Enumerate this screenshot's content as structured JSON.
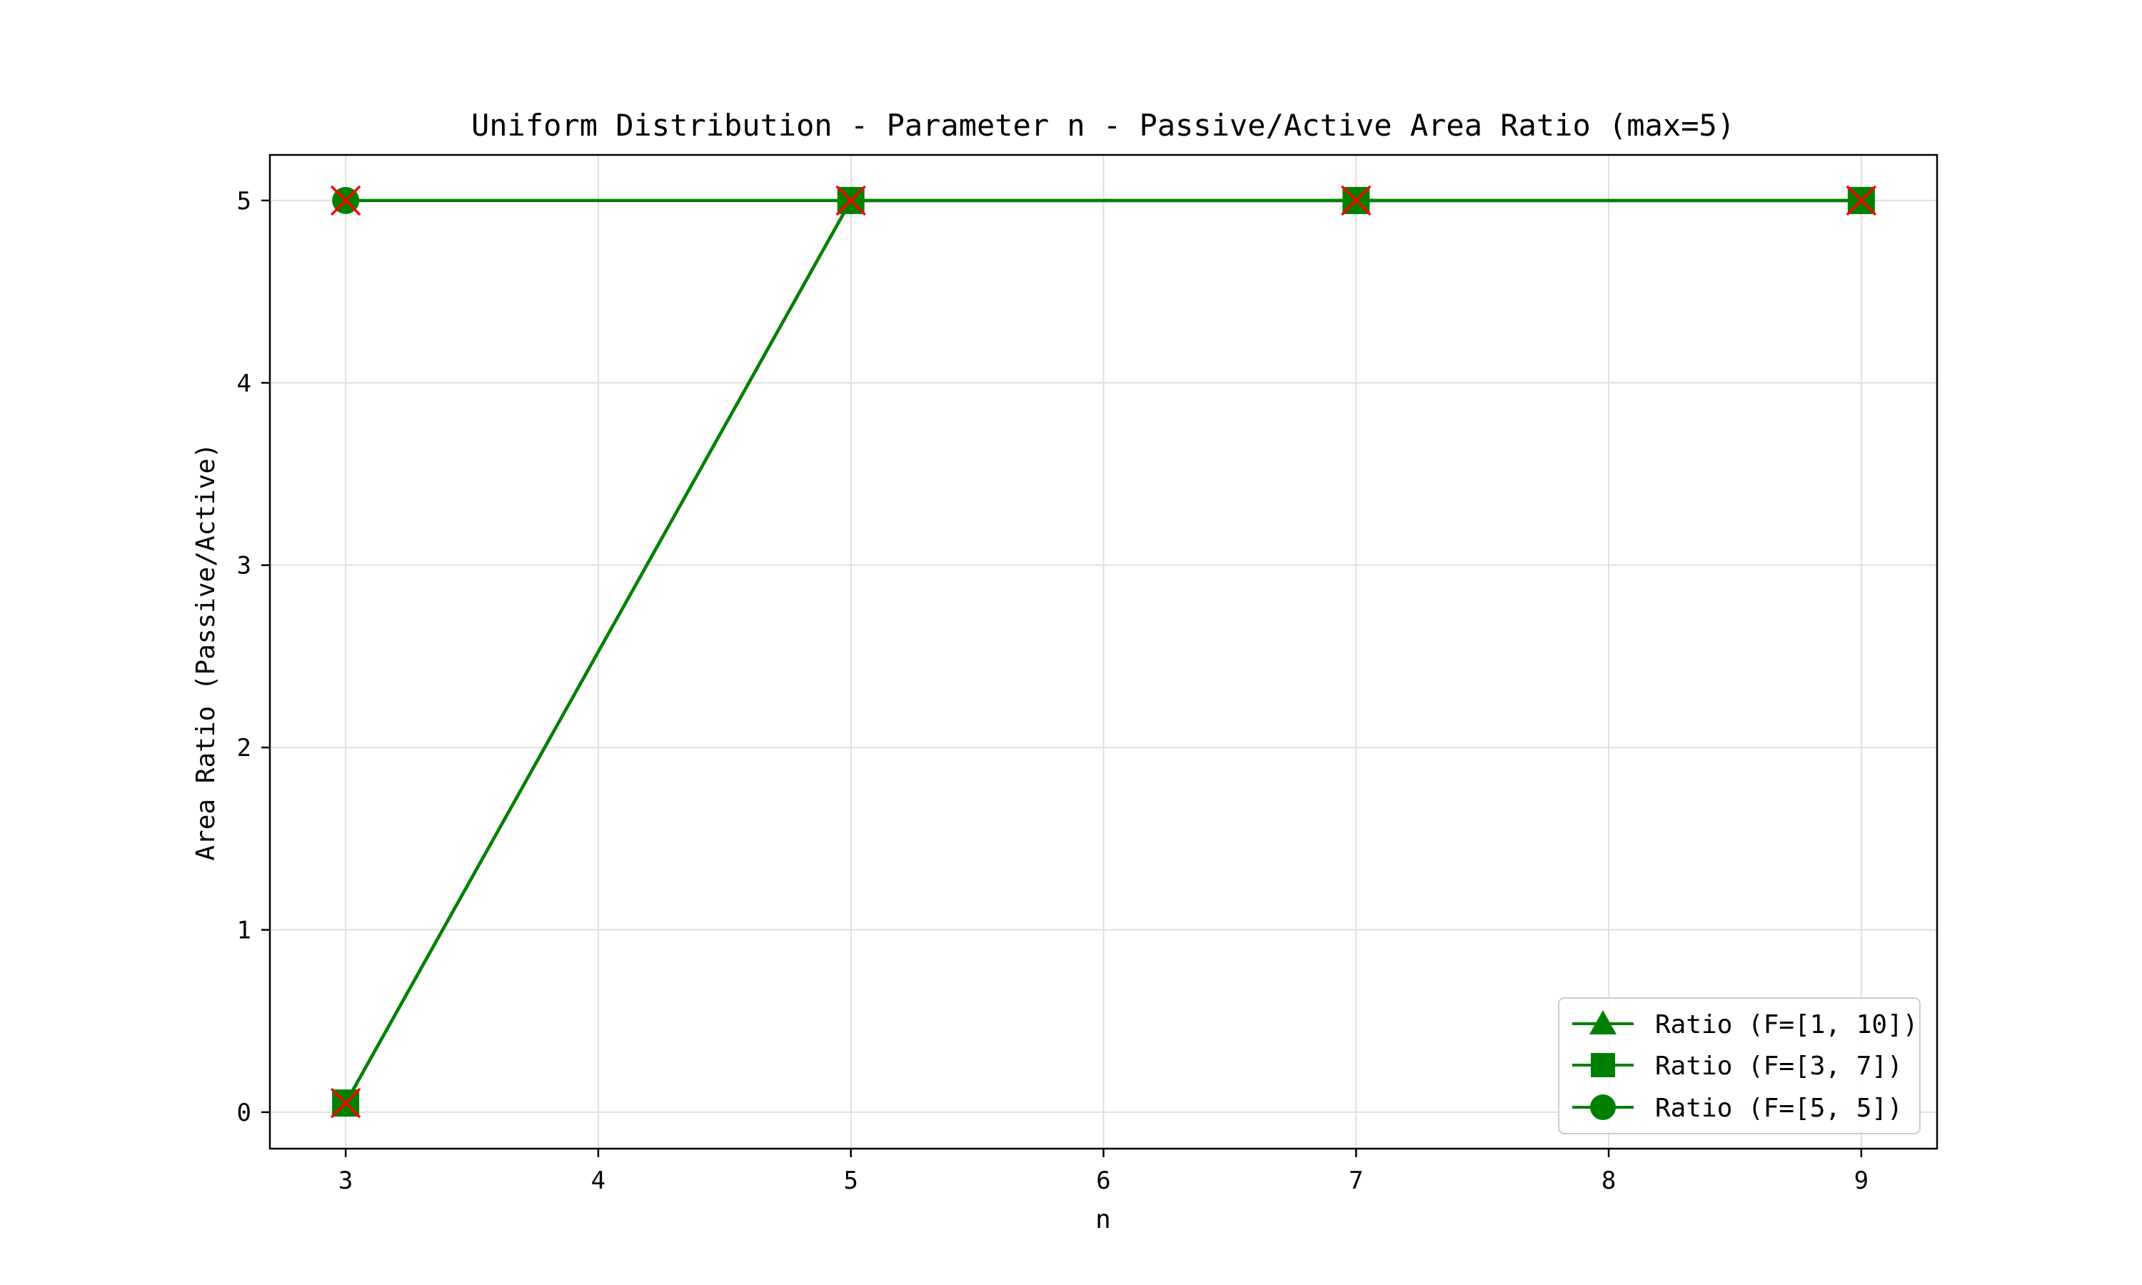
{
  "chart_data": {
    "type": "line",
    "title": "Uniform Distribution - Parameter n - Passive/Active Area Ratio (max=5)",
    "xlabel": "n",
    "ylabel": "Area Ratio (Passive/Active)",
    "x": [
      3,
      5,
      7,
      9
    ],
    "xlim": [
      2.7,
      9.3
    ],
    "ylim": [
      -0.2,
      5.25
    ],
    "xticks": [
      3,
      4,
      5,
      6,
      7,
      8,
      9
    ],
    "yticks": [
      0,
      1,
      2,
      3,
      4,
      5
    ],
    "grid": true,
    "legend_position": "lower-right",
    "line_color": "#008000",
    "cap_marker_color": "#ff0000",
    "series": [
      {
        "name": "Ratio (F=[1, 10])",
        "marker": "triangle",
        "values": [
          0.05,
          5,
          5,
          5
        ]
      },
      {
        "name": "Ratio (F=[3, 7])",
        "marker": "square",
        "values": [
          0.05,
          5,
          5,
          5
        ]
      },
      {
        "name": "Ratio (F=[5, 5])",
        "marker": "circle",
        "values": [
          5,
          5,
          5,
          5
        ]
      }
    ],
    "capped_points": [
      {
        "x": 3,
        "y": 0.05
      },
      {
        "x": 3,
        "y": 5
      },
      {
        "x": 5,
        "y": 5
      },
      {
        "x": 7,
        "y": 5
      },
      {
        "x": 9,
        "y": 5
      }
    ]
  }
}
